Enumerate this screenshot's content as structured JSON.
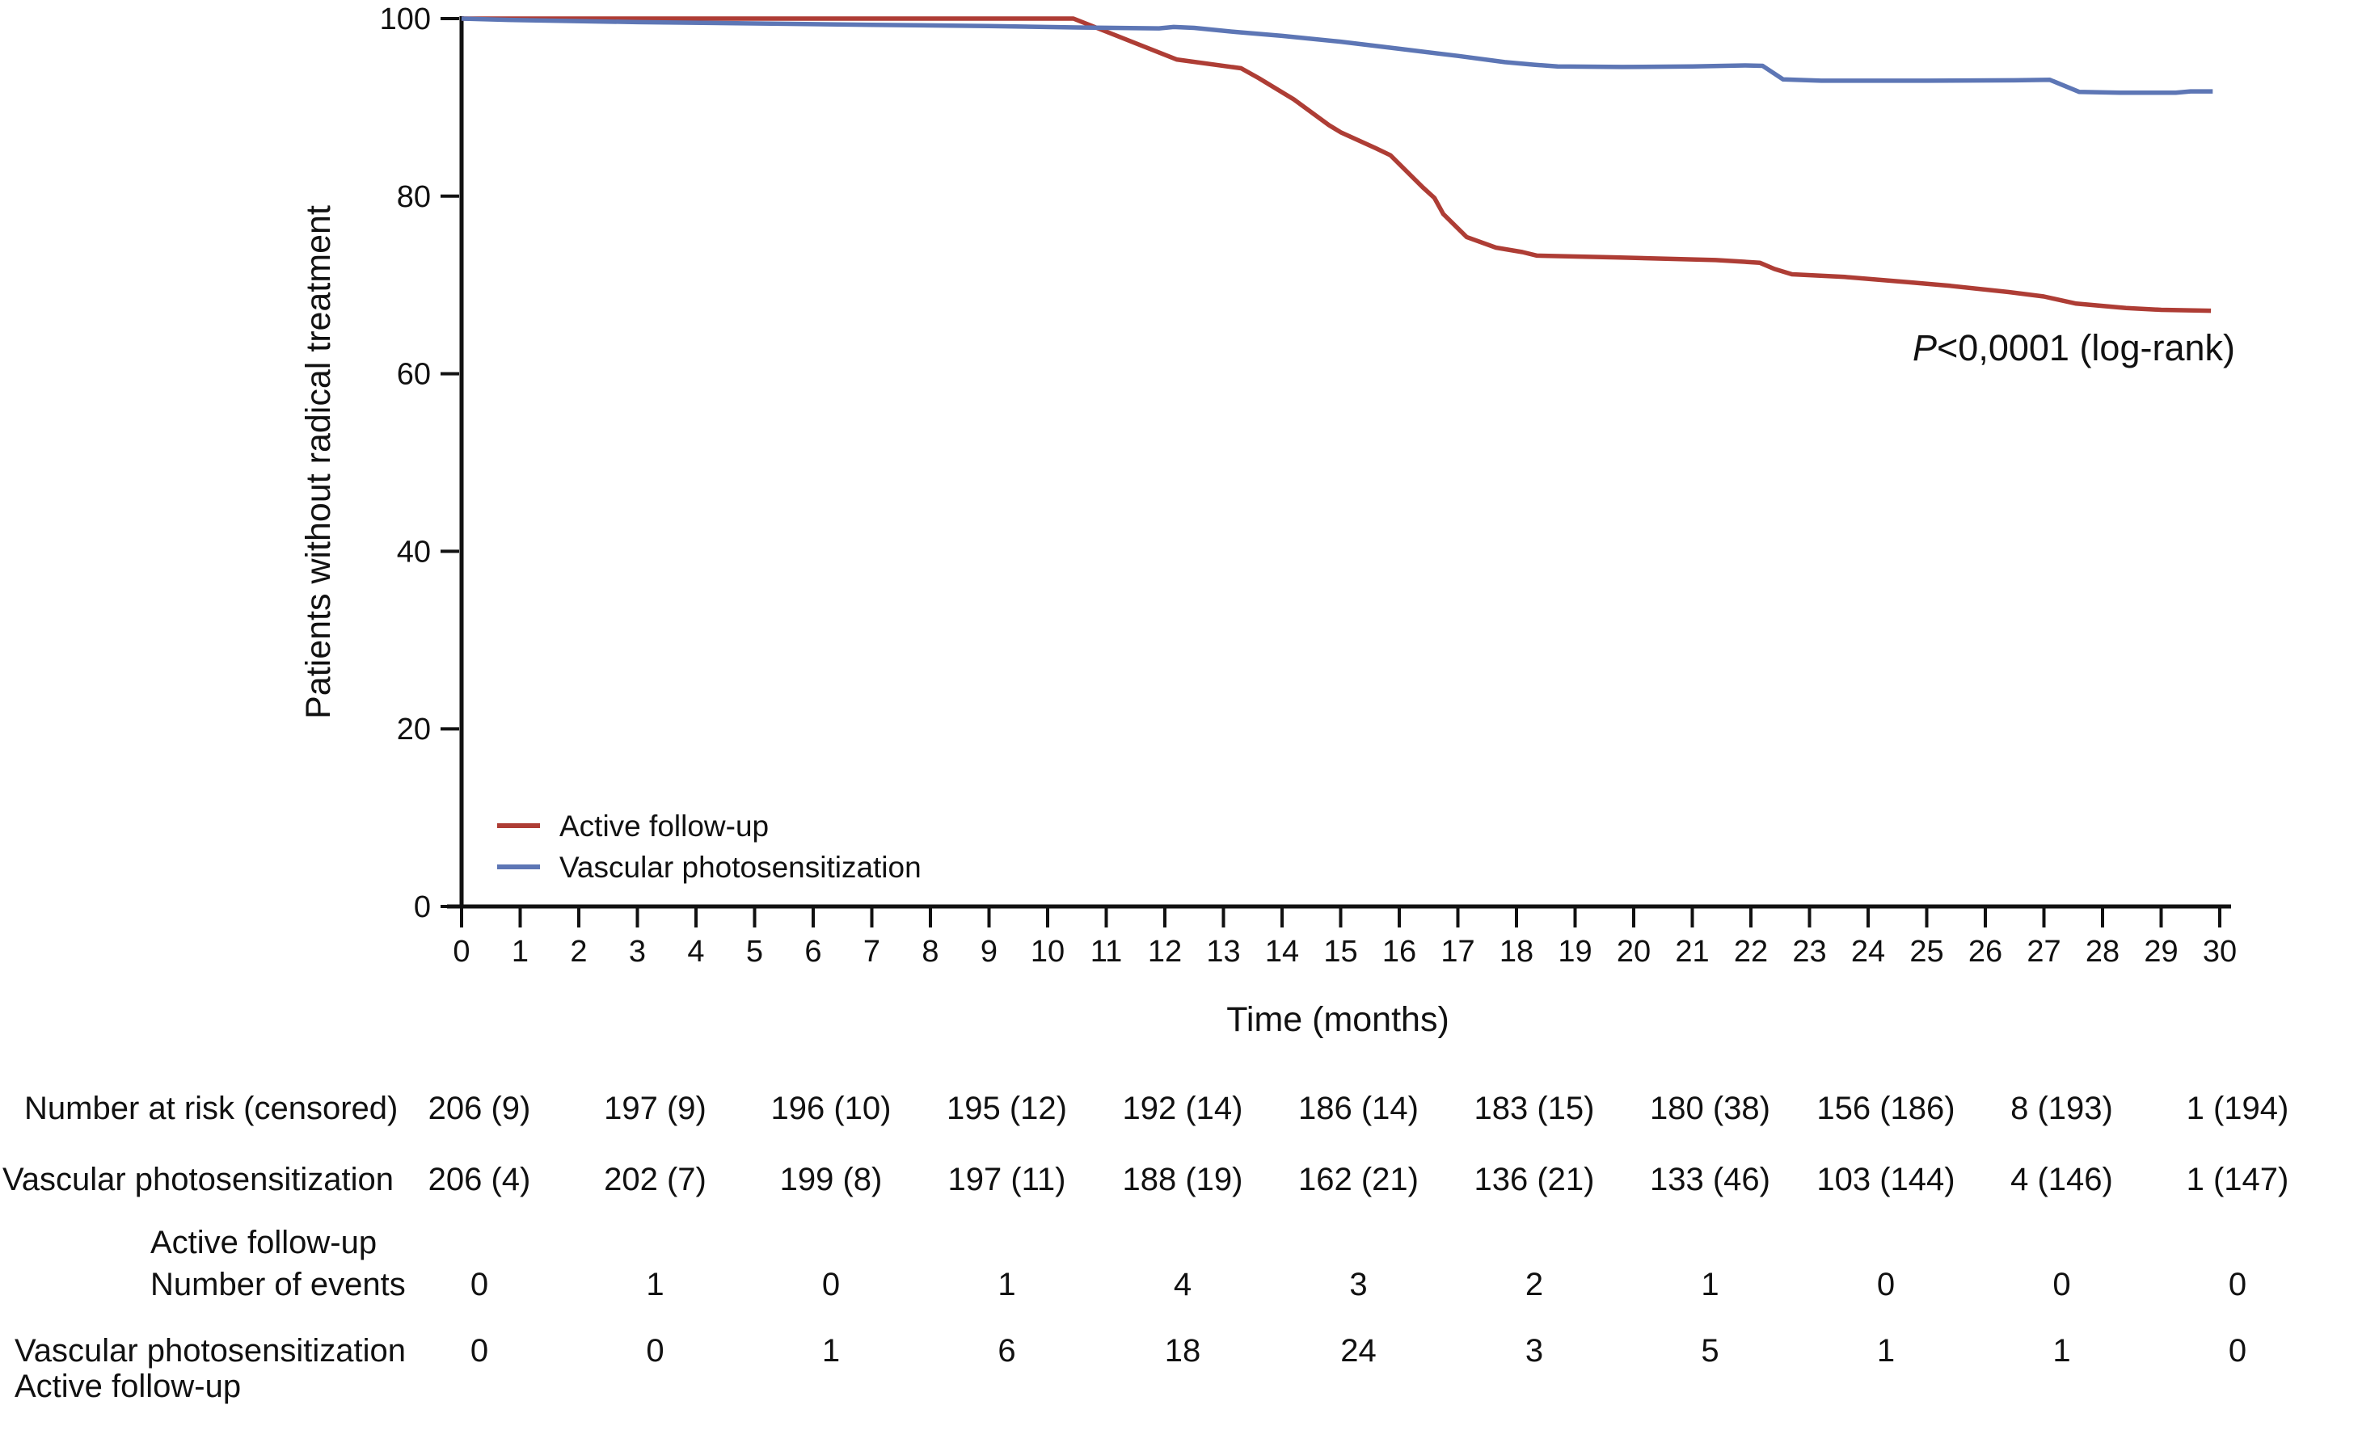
{
  "figure": {
    "y_axis_title": "Patients without radical treatment",
    "x_axis_title": "Time (months)",
    "p_value_prefix": "P",
    "p_value_rest": "<0,0001 (log-rank)"
  },
  "chart_data": {
    "type": "line",
    "subtype": "kaplan-meier-survival",
    "title": "",
    "xlabel": "Time (months)",
    "ylabel": "Patients without radical treatment",
    "xlim": [
      0,
      30
    ],
    "ylim": [
      0,
      100
    ],
    "x_ticks": [
      0,
      1,
      2,
      3,
      4,
      5,
      6,
      7,
      8,
      9,
      10,
      11,
      12,
      13,
      14,
      15,
      16,
      17,
      18,
      19,
      20,
      21,
      22,
      23,
      24,
      25,
      26,
      27,
      28,
      29,
      30
    ],
    "y_ticks": [
      0,
      20,
      40,
      60,
      80,
      100
    ],
    "grid": false,
    "legend_position": "lower-left-inside",
    "annotation": "P<0,0001 (log-rank)",
    "series": [
      {
        "name": "Active follow-up",
        "color": "#ae3d35",
        "points": [
          [
            0,
            100
          ],
          [
            10.44,
            100
          ],
          [
            12.2,
            95.4
          ],
          [
            13.3,
            94.4
          ],
          [
            13.6,
            93.3
          ],
          [
            14.2,
            90.9
          ],
          [
            14.8,
            88.0
          ],
          [
            15.0,
            87.2
          ],
          [
            15.6,
            85.4
          ],
          [
            15.85,
            84.6
          ],
          [
            16.4,
            81.0
          ],
          [
            16.6,
            79.8
          ],
          [
            16.75,
            78.0
          ],
          [
            17.15,
            75.4
          ],
          [
            17.65,
            74.2
          ],
          [
            18.1,
            73.7
          ],
          [
            18.35,
            73.3
          ],
          [
            19.7,
            73.1
          ],
          [
            21.4,
            72.8
          ],
          [
            22.15,
            72.5
          ],
          [
            22.4,
            71.8
          ],
          [
            22.7,
            71.2
          ],
          [
            23.6,
            70.9
          ],
          [
            24.7,
            70.3
          ],
          [
            25.4,
            69.9
          ],
          [
            26.4,
            69.2
          ],
          [
            27.0,
            68.7
          ],
          [
            27.55,
            67.9
          ],
          [
            28.4,
            67.4
          ],
          [
            29.0,
            67.2
          ],
          [
            29.85,
            67.1
          ]
        ]
      },
      {
        "name": "Vascular photosensitization",
        "color": "#5d76b5",
        "points": [
          [
            0,
            100
          ],
          [
            0.8,
            99.85
          ],
          [
            3,
            99.6
          ],
          [
            5,
            99.45
          ],
          [
            7,
            99.3
          ],
          [
            9,
            99.15
          ],
          [
            10.5,
            99.0
          ],
          [
            11.9,
            98.9
          ],
          [
            12.15,
            99.05
          ],
          [
            12.5,
            98.95
          ],
          [
            13.2,
            98.5
          ],
          [
            14,
            98.05
          ],
          [
            15,
            97.4
          ],
          [
            16,
            96.6
          ],
          [
            17,
            95.8
          ],
          [
            17.8,
            95.1
          ],
          [
            18.3,
            94.8
          ],
          [
            18.7,
            94.6
          ],
          [
            19.8,
            94.55
          ],
          [
            21.0,
            94.6
          ],
          [
            21.9,
            94.72
          ],
          [
            22.2,
            94.68
          ],
          [
            22.55,
            93.15
          ],
          [
            23.2,
            93.0
          ],
          [
            25.0,
            93.0
          ],
          [
            26.5,
            93.05
          ],
          [
            27.1,
            93.1
          ],
          [
            27.6,
            91.75
          ],
          [
            28.3,
            91.65
          ],
          [
            29.25,
            91.65
          ],
          [
            29.5,
            91.8
          ],
          [
            29.88,
            91.8
          ]
        ]
      }
    ]
  },
  "risk_table": {
    "time_points": [
      0,
      3,
      6,
      9,
      12,
      15,
      18,
      21,
      24,
      27,
      30
    ],
    "rows": [
      {
        "label_lines": [
          "Number at risk (censored)"
        ],
        "values": [
          "206 (9)",
          "197 (9)",
          "196 (10)",
          "195 (12)",
          "192 (14)",
          "186 (14)",
          "183 (15)",
          "180 (38)",
          "156 (186)",
          "8 (193)",
          "1 (194)"
        ]
      },
      {
        "label_lines": [
          "Vascular photosensitization"
        ],
        "values": [
          "206 (4)",
          "202 (7)",
          "199 (8)",
          "197 (11)",
          "188 (19)",
          "162 (21)",
          "136 (21)",
          "133 (46)",
          "103 (144)",
          "4 (146)",
          "1 (147)"
        ]
      },
      {
        "label_lines": [
          "Active follow-up",
          "Number of events"
        ],
        "values": [
          "0",
          "1",
          "0",
          "1",
          "4",
          "3",
          "2",
          "1",
          "0",
          "0",
          "0"
        ]
      },
      {
        "label_lines": [
          "Vascular photosensitization",
          "Active follow-up"
        ],
        "values": [
          "0",
          "0",
          "1",
          "6",
          "18",
          "24",
          "3",
          "5",
          "1",
          "1",
          "0"
        ]
      }
    ]
  }
}
